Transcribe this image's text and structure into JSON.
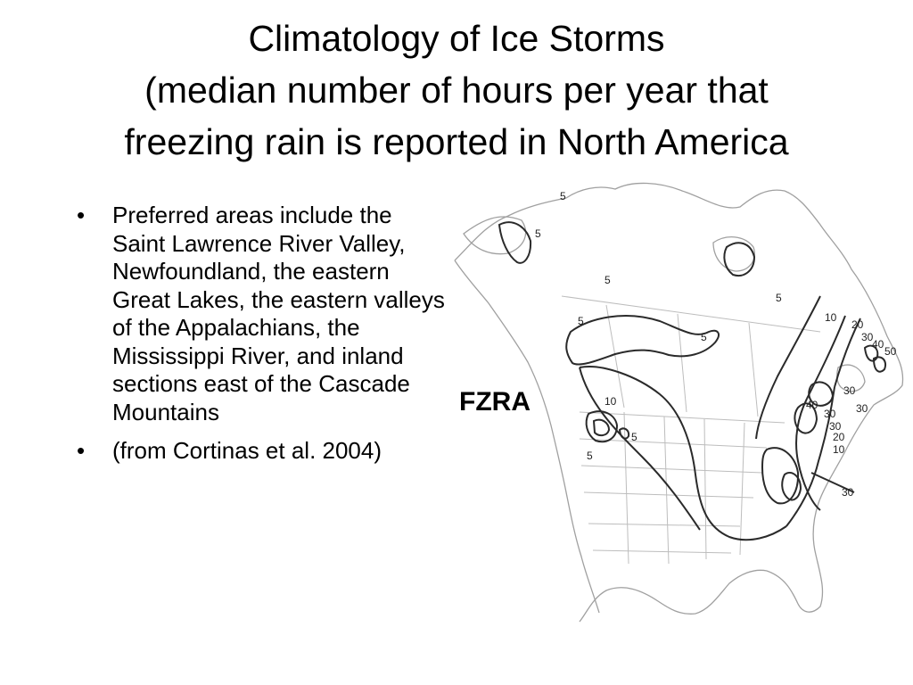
{
  "title": {
    "line1": "Climatology of Ice Storms",
    "line2": "(median number of hours per year that",
    "line3": "freezing rain is reported in North America"
  },
  "bullets": [
    {
      "text": "Preferred areas include the Saint Lawrence River Valley, Newfoundland, the eastern Great Lakes, the eastern valleys of the Appalachians, the Mississippi River, and inland sections east of the Cascade Mountains"
    },
    {
      "text": "(from Cortinas et al. 2004)"
    }
  ],
  "map": {
    "panel_label": "FZRA",
    "contour_labels": [
      "5",
      "5",
      "5",
      "5",
      "5",
      "10",
      "5",
      "5",
      "5",
      "10",
      "20",
      "30",
      "40",
      "50",
      "30",
      "30",
      "30",
      "40",
      "30",
      "20",
      "10",
      "30"
    ],
    "colors": {
      "line": "#333333",
      "coast": "#9a9a9a",
      "border": "#bcbcbc",
      "contour": "#2a2a2a"
    }
  }
}
